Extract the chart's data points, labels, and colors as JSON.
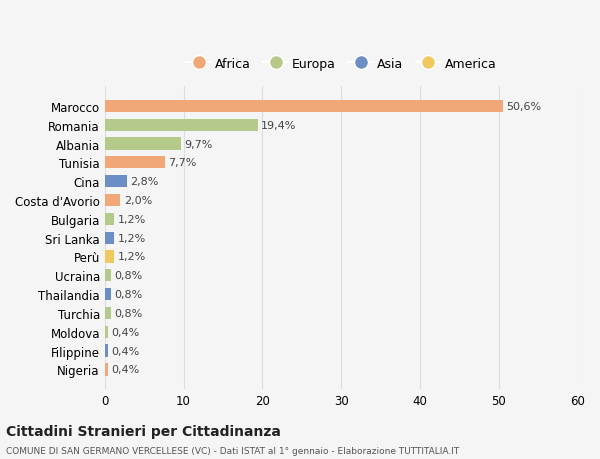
{
  "countries": [
    "Marocco",
    "Romania",
    "Albania",
    "Tunisia",
    "Cina",
    "Costa d'Avorio",
    "Bulgaria",
    "Sri Lanka",
    "Perù",
    "Ucraina",
    "Thailandia",
    "Turchia",
    "Moldova",
    "Filippine",
    "Nigeria"
  ],
  "values": [
    50.6,
    19.4,
    9.7,
    7.7,
    2.8,
    2.0,
    1.2,
    1.2,
    1.2,
    0.8,
    0.8,
    0.8,
    0.4,
    0.4,
    0.4
  ],
  "labels": [
    "50,6%",
    "19,4%",
    "9,7%",
    "7,7%",
    "2,8%",
    "2,0%",
    "1,2%",
    "1,2%",
    "1,2%",
    "0,8%",
    "0,8%",
    "0,8%",
    "0,4%",
    "0,4%",
    "0,4%"
  ],
  "continents": [
    "Africa",
    "Europa",
    "Europa",
    "Africa",
    "Asia",
    "Africa",
    "Europa",
    "Asia",
    "America",
    "Europa",
    "Asia",
    "Europa",
    "Europa",
    "Asia",
    "Africa"
  ],
  "continent_colors": {
    "Africa": "#F0A878",
    "Europa": "#B5C98A",
    "Asia": "#6B8EC4",
    "America": "#F0C860"
  },
  "legend_order": [
    "Africa",
    "Europa",
    "Asia",
    "America"
  ],
  "title": "Cittadini Stranieri per Cittadinanza",
  "subtitle": "COMUNE DI SAN GERMANO VERCELLESE (VC) - Dati ISTAT al 1° gennaio - Elaborazione TUTTITALIA.IT",
  "xlim": [
    0,
    60
  ],
  "xticks": [
    0,
    10,
    20,
    30,
    40,
    50,
    60
  ],
  "background_color": "#f5f5f5",
  "grid_color": "#dddddd"
}
